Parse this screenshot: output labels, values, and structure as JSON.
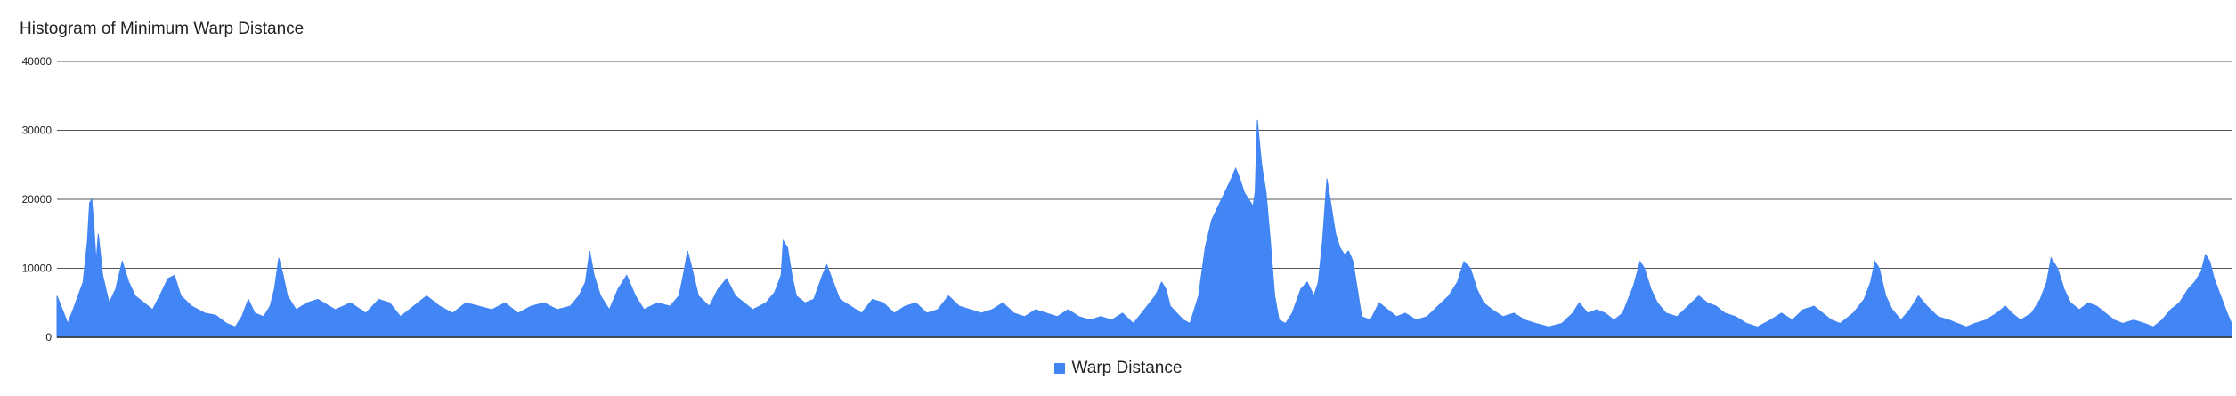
{
  "chart_data": {
    "type": "area",
    "title": "Histogram of Minimum Warp Distance",
    "xlabel": "",
    "ylabel": "",
    "ylim": [
      0,
      40000
    ],
    "yticks": [
      0,
      10000,
      20000,
      30000,
      40000
    ],
    "ytick_labels": [
      "0",
      "10000",
      "20000",
      "30000",
      "40000"
    ],
    "grid": true,
    "legend_position": "bottom",
    "series": [
      {
        "name": "Warp Distance",
        "color": "#4285f4",
        "x_range": [
          0,
          1000
        ],
        "points": [
          [
            0,
            6000
          ],
          [
            5,
            2000
          ],
          [
            8,
            4500
          ],
          [
            12,
            8000
          ],
          [
            14,
            14000
          ],
          [
            15,
            19500
          ],
          [
            16,
            20000
          ],
          [
            17,
            16000
          ],
          [
            18,
            11000
          ],
          [
            19,
            15000
          ],
          [
            21,
            9000
          ],
          [
            24,
            5000
          ],
          [
            27,
            7000
          ],
          [
            30,
            11000
          ],
          [
            33,
            8000
          ],
          [
            36,
            6000
          ],
          [
            40,
            5000
          ],
          [
            44,
            4000
          ],
          [
            48,
            6500
          ],
          [
            51,
            8500
          ],
          [
            54,
            9000
          ],
          [
            57,
            6000
          ],
          [
            62,
            4500
          ],
          [
            68,
            3500
          ],
          [
            73,
            3200
          ],
          [
            78,
            2000
          ],
          [
            82,
            1500
          ],
          [
            85,
            3000
          ],
          [
            88,
            5500
          ],
          [
            91,
            3500
          ],
          [
            95,
            3000
          ],
          [
            98,
            4500
          ],
          [
            100,
            7000
          ],
          [
            102,
            11500
          ],
          [
            104,
            9000
          ],
          [
            106,
            6000
          ],
          [
            110,
            4000
          ],
          [
            115,
            5000
          ],
          [
            120,
            5500
          ],
          [
            128,
            4000
          ],
          [
            135,
            5000
          ],
          [
            142,
            3500
          ],
          [
            148,
            5500
          ],
          [
            153,
            5000
          ],
          [
            158,
            3000
          ],
          [
            164,
            4500
          ],
          [
            170,
            6000
          ],
          [
            176,
            4500
          ],
          [
            182,
            3500
          ],
          [
            188,
            5000
          ],
          [
            194,
            4500
          ],
          [
            200,
            4000
          ],
          [
            206,
            5000
          ],
          [
            212,
            3500
          ],
          [
            218,
            4500
          ],
          [
            224,
            5000
          ],
          [
            230,
            4000
          ],
          [
            236,
            4500
          ],
          [
            240,
            6000
          ],
          [
            243,
            8000
          ],
          [
            245,
            12500
          ],
          [
            247,
            9000
          ],
          [
            250,
            6000
          ],
          [
            254,
            4000
          ],
          [
            258,
            7000
          ],
          [
            262,
            9000
          ],
          [
            266,
            6000
          ],
          [
            270,
            4000
          ],
          [
            276,
            5000
          ],
          [
            282,
            4500
          ],
          [
            286,
            6000
          ],
          [
            288,
            9000
          ],
          [
            290,
            12500
          ],
          [
            292,
            10000
          ],
          [
            295,
            6000
          ],
          [
            300,
            4500
          ],
          [
            304,
            7000
          ],
          [
            308,
            8500
          ],
          [
            312,
            6000
          ],
          [
            316,
            5000
          ],
          [
            320,
            4000
          ],
          [
            326,
            5000
          ],
          [
            330,
            6500
          ],
          [
            333,
            9000
          ],
          [
            334,
            14000
          ],
          [
            336,
            13000
          ],
          [
            338,
            9000
          ],
          [
            340,
            6000
          ],
          [
            344,
            5000
          ],
          [
            348,
            5500
          ],
          [
            352,
            9000
          ],
          [
            354,
            10500
          ],
          [
            357,
            8000
          ],
          [
            360,
            5500
          ],
          [
            365,
            4500
          ],
          [
            370,
            3500
          ],
          [
            375,
            5500
          ],
          [
            380,
            5000
          ],
          [
            385,
            3500
          ],
          [
            390,
            4500
          ],
          [
            395,
            5000
          ],
          [
            400,
            3500
          ],
          [
            405,
            4000
          ],
          [
            410,
            6000
          ],
          [
            415,
            4500
          ],
          [
            420,
            4000
          ],
          [
            425,
            3500
          ],
          [
            430,
            4000
          ],
          [
            435,
            5000
          ],
          [
            440,
            3500
          ],
          [
            445,
            3000
          ],
          [
            450,
            4000
          ],
          [
            455,
            3500
          ],
          [
            460,
            3000
          ],
          [
            465,
            4000
          ],
          [
            470,
            3000
          ],
          [
            475,
            2500
          ],
          [
            480,
            3000
          ],
          [
            485,
            2500
          ],
          [
            490,
            3500
          ],
          [
            495,
            2000
          ],
          [
            500,
            4000
          ],
          [
            505,
            6000
          ],
          [
            508,
            8000
          ],
          [
            510,
            7000
          ],
          [
            512,
            4500
          ],
          [
            515,
            3500
          ],
          [
            518,
            2500
          ],
          [
            521,
            2000
          ],
          [
            525,
            6000
          ],
          [
            528,
            13000
          ],
          [
            531,
            17000
          ],
          [
            534,
            19000
          ],
          [
            537,
            21000
          ],
          [
            540,
            23000
          ],
          [
            542,
            24500
          ],
          [
            544,
            23000
          ],
          [
            546,
            21000
          ],
          [
            548,
            20000
          ],
          [
            550,
            19000
          ],
          [
            551,
            21000
          ],
          [
            552,
            31500
          ],
          [
            554,
            25000
          ],
          [
            556,
            21000
          ],
          [
            558,
            14000
          ],
          [
            560,
            6000
          ],
          [
            562,
            2500
          ],
          [
            565,
            2000
          ],
          [
            568,
            3500
          ],
          [
            572,
            7000
          ],
          [
            575,
            8000
          ],
          [
            578,
            6000
          ],
          [
            580,
            8000
          ],
          [
            582,
            14000
          ],
          [
            584,
            23000
          ],
          [
            586,
            19000
          ],
          [
            588,
            15000
          ],
          [
            590,
            13000
          ],
          [
            592,
            12000
          ],
          [
            594,
            12500
          ],
          [
            596,
            11000
          ],
          [
            598,
            7000
          ],
          [
            600,
            3000
          ],
          [
            604,
            2500
          ],
          [
            608,
            5000
          ],
          [
            612,
            4000
          ],
          [
            616,
            3000
          ],
          [
            620,
            3500
          ],
          [
            625,
            2500
          ],
          [
            630,
            3000
          ],
          [
            635,
            4500
          ],
          [
            640,
            6000
          ],
          [
            644,
            8000
          ],
          [
            647,
            11000
          ],
          [
            650,
            10000
          ],
          [
            653,
            7000
          ],
          [
            656,
            5000
          ],
          [
            660,
            4000
          ],
          [
            665,
            3000
          ],
          [
            670,
            3500
          ],
          [
            675,
            2500
          ],
          [
            680,
            2000
          ],
          [
            686,
            1500
          ],
          [
            692,
            2000
          ],
          [
            697,
            3500
          ],
          [
            700,
            5000
          ],
          [
            704,
            3500
          ],
          [
            708,
            4000
          ],
          [
            712,
            3500
          ],
          [
            716,
            2500
          ],
          [
            720,
            3500
          ],
          [
            725,
            7500
          ],
          [
            728,
            11000
          ],
          [
            730,
            10000
          ],
          [
            733,
            7000
          ],
          [
            736,
            5000
          ],
          [
            740,
            3500
          ],
          [
            745,
            3000
          ],
          [
            750,
            4500
          ],
          [
            755,
            6000
          ],
          [
            759,
            5000
          ],
          [
            763,
            4500
          ],
          [
            767,
            3500
          ],
          [
            772,
            3000
          ],
          [
            777,
            2000
          ],
          [
            782,
            1500
          ],
          [
            788,
            2500
          ],
          [
            793,
            3500
          ],
          [
            798,
            2500
          ],
          [
            803,
            4000
          ],
          [
            808,
            4500
          ],
          [
            812,
            3500
          ],
          [
            816,
            2500
          ],
          [
            820,
            2000
          ],
          [
            826,
            3500
          ],
          [
            831,
            5500
          ],
          [
            834,
            8000
          ],
          [
            836,
            11000
          ],
          [
            838,
            10000
          ],
          [
            841,
            6000
          ],
          [
            844,
            4000
          ],
          [
            848,
            2500
          ],
          [
            852,
            4000
          ],
          [
            856,
            6000
          ],
          [
            860,
            4500
          ],
          [
            865,
            3000
          ],
          [
            870,
            2500
          ],
          [
            874,
            2000
          ],
          [
            878,
            1500
          ],
          [
            882,
            2000
          ],
          [
            887,
            2500
          ],
          [
            892,
            3500
          ],
          [
            896,
            4500
          ],
          [
            899,
            3500
          ],
          [
            903,
            2500
          ],
          [
            908,
            3500
          ],
          [
            912,
            5500
          ],
          [
            915,
            8000
          ],
          [
            917,
            11500
          ],
          [
            920,
            10000
          ],
          [
            923,
            7000
          ],
          [
            926,
            5000
          ],
          [
            930,
            4000
          ],
          [
            934,
            5000
          ],
          [
            938,
            4500
          ],
          [
            942,
            3500
          ],
          [
            946,
            2500
          ],
          [
            950,
            2000
          ],
          [
            955,
            2500
          ],
          [
            960,
            2000
          ],
          [
            964,
            1500
          ],
          [
            968,
            2500
          ],
          [
            972,
            4000
          ],
          [
            976,
            5000
          ],
          [
            980,
            7000
          ],
          [
            983,
            8000
          ],
          [
            986,
            9500
          ],
          [
            988,
            12000
          ],
          [
            990,
            11000
          ],
          [
            992,
            8500
          ],
          [
            995,
            6000
          ],
          [
            998,
            3500
          ],
          [
            1000,
            2000
          ]
        ]
      }
    ]
  }
}
